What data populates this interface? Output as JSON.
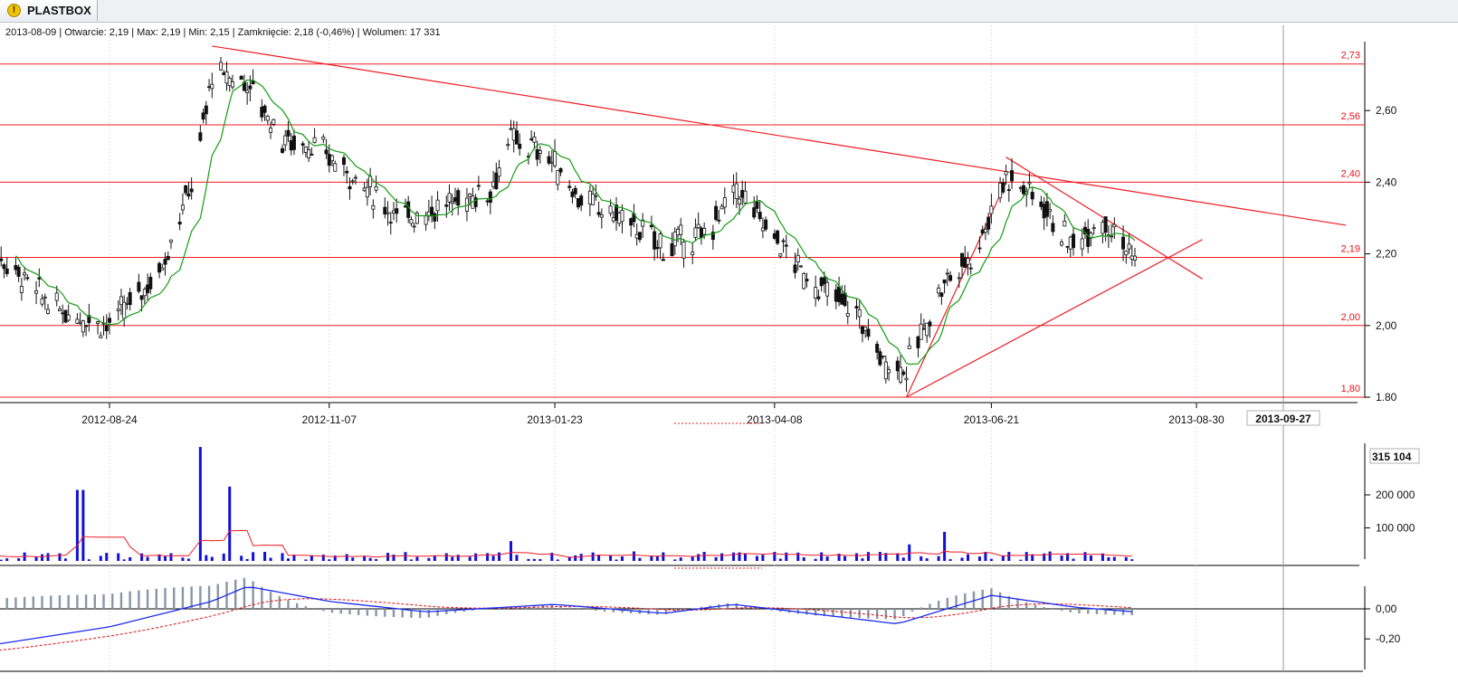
{
  "tab": {
    "title": "PLASTBOX",
    "icon": "warning-icon"
  },
  "info_line": "2013-08-09 | Otwarcie: 2,19 | Max: 2,19 | Min: 2,15 | Zamknięcie: 2,18 (-0,46%)  | Wolumen: 17 331",
  "colors": {
    "up": "#ffffff",
    "down": "#111111",
    "sma": "#139c13",
    "lines": "#ee1c24",
    "volume": "#1010d8",
    "volume_ma": "#ee1c24",
    "macd": "#1d2cf0",
    "signal": "#e02020",
    "hist": "#8796a6"
  },
  "chart_data": [
    {
      "type": "candlestick",
      "x_tick_labels": [
        "2012-08-24",
        "2012-11-07",
        "2013-01-23",
        "2013-04-08",
        "2013-06-21",
        "2013-08-30"
      ],
      "cursor_date_label": "2013-09-27",
      "y_tick_labels": [
        "2,60",
        "2,40",
        "2,20",
        "2,00",
        "1.80"
      ],
      "ylim": [
        1.8,
        2.78
      ],
      "horizontal_levels": [
        {
          "value": 2.73,
          "label": "2,73"
        },
        {
          "value": 2.56,
          "label": "2,56"
        },
        {
          "value": 2.4,
          "label": "2,40"
        },
        {
          "value": 2.19,
          "label": "2,19"
        },
        {
          "value": 2.0,
          "label": "2,00"
        },
        {
          "value": 1.8,
          "label": "1,80"
        }
      ],
      "trend_lines": [
        {
          "from": [
            "2012-09-28",
            2.78
          ],
          "to": [
            "2013-10-20",
            2.28
          ]
        },
        {
          "from": [
            "2013-05-23",
            1.8
          ],
          "to": [
            "2013-09-01",
            2.24
          ]
        },
        {
          "from": [
            "2013-05-23",
            1.8
          ],
          "to": [
            "2013-06-26",
            2.4
          ]
        },
        {
          "from": [
            "2013-06-26",
            2.47
          ],
          "to": [
            "2013-09-01",
            2.13
          ]
        }
      ],
      "key_points": [
        {
          "date": "2012-07-10",
          "value": 2.25
        },
        {
          "date": "2012-08-05",
          "value": 2.05
        },
        {
          "date": "2012-08-24",
          "value": 2.0
        },
        {
          "date": "2012-09-10",
          "value": 2.15
        },
        {
          "date": "2012-09-22",
          "value": 2.42
        },
        {
          "date": "2012-09-28",
          "value": 2.7
        },
        {
          "date": "2012-10-10",
          "value": 2.68
        },
        {
          "date": "2012-10-22",
          "value": 2.52
        },
        {
          "date": "2012-11-02",
          "value": 2.5
        },
        {
          "date": "2012-11-15",
          "value": 2.42
        },
        {
          "date": "2012-12-01",
          "value": 2.3
        },
        {
          "date": "2012-12-15",
          "value": 2.33
        },
        {
          "date": "2013-01-01",
          "value": 2.38
        },
        {
          "date": "2013-01-08",
          "value": 2.52
        },
        {
          "date": "2013-01-20",
          "value": 2.48
        },
        {
          "date": "2013-02-01",
          "value": 2.35
        },
        {
          "date": "2013-02-15",
          "value": 2.3
        },
        {
          "date": "2013-03-01",
          "value": 2.22
        },
        {
          "date": "2013-03-15",
          "value": 2.25
        },
        {
          "date": "2013-03-26",
          "value": 2.38
        },
        {
          "date": "2013-04-08",
          "value": 2.25
        },
        {
          "date": "2013-04-20",
          "value": 2.12
        },
        {
          "date": "2013-05-05",
          "value": 2.05
        },
        {
          "date": "2013-05-15",
          "value": 1.9
        },
        {
          "date": "2013-05-23",
          "value": 1.88
        },
        {
          "date": "2013-06-05",
          "value": 2.12
        },
        {
          "date": "2013-06-15",
          "value": 2.2
        },
        {
          "date": "2013-06-26",
          "value": 2.42
        },
        {
          "date": "2013-07-08",
          "value": 2.35
        },
        {
          "date": "2013-07-18",
          "value": 2.22
        },
        {
          "date": "2013-07-28",
          "value": 2.3
        },
        {
          "date": "2013-08-01",
          "value": 2.28
        },
        {
          "date": "2013-08-09",
          "value": 2.18
        }
      ]
    },
    {
      "type": "bar",
      "name": "volume",
      "y_tick_labels": [
        "100 000",
        "200 000"
      ],
      "last_value_label": "315 104",
      "spikes": [
        {
          "date": "2012-08-14",
          "value": 215000
        },
        {
          "date": "2012-09-24",
          "value": 345000
        },
        {
          "date": "2012-10-05",
          "value": 225000
        },
        {
          "date": "2012-09-30",
          "value": 125000
        },
        {
          "date": "2013-01-08",
          "value": 60000
        },
        {
          "date": "2013-06-05",
          "value": 88000
        },
        {
          "date": "2013-05-25",
          "value": 50000
        }
      ],
      "typical_value": 18000
    },
    {
      "type": "line",
      "name": "macd",
      "y_tick_labels": [
        "0,00",
        "-0,20"
      ],
      "ylim": [
        -0.3,
        0.12
      ],
      "key_points": [
        {
          "date": "2012-07-05",
          "value": -0.27
        },
        {
          "date": "2012-08-24",
          "value": -0.12
        },
        {
          "date": "2012-09-28",
          "value": 0.05
        },
        {
          "date": "2012-10-10",
          "value": 0.15
        },
        {
          "date": "2012-11-07",
          "value": 0.05
        },
        {
          "date": "2012-12-10",
          "value": -0.02
        },
        {
          "date": "2013-01-23",
          "value": 0.03
        },
        {
          "date": "2013-03-01",
          "value": -0.03
        },
        {
          "date": "2013-03-25",
          "value": 0.03
        },
        {
          "date": "2013-04-20",
          "value": -0.03
        },
        {
          "date": "2013-05-20",
          "value": -0.1
        },
        {
          "date": "2013-06-21",
          "value": 0.09
        },
        {
          "date": "2013-07-20",
          "value": 0.01
        },
        {
          "date": "2013-08-09",
          "value": -0.02
        }
      ]
    }
  ]
}
